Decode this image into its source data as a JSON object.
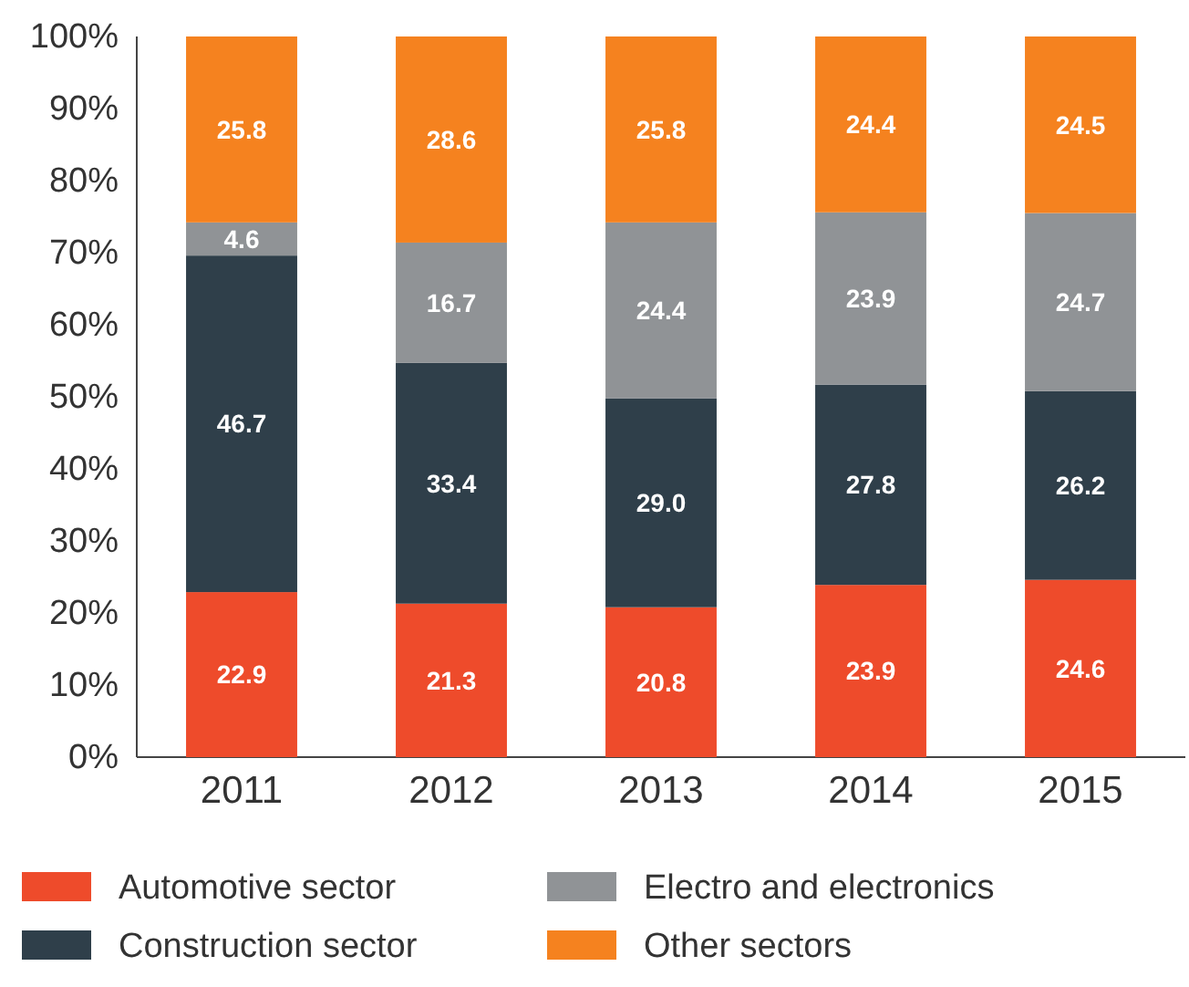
{
  "chart_data": {
    "type": "bar",
    "stacked": true,
    "categories": [
      "2011",
      "2012",
      "2013",
      "2014",
      "2015"
    ],
    "series": [
      {
        "name": "Automotive sector",
        "color": "#ee4b2b",
        "values": [
          22.9,
          21.3,
          20.8,
          23.9,
          24.6
        ],
        "value_labels": [
          "22.9",
          "21.3",
          "20.8",
          "23.9",
          "24.6"
        ]
      },
      {
        "name": "Construction sector",
        "color": "#2f3f4a",
        "values": [
          46.7,
          33.4,
          29.0,
          27.8,
          26.2
        ],
        "value_labels": [
          "46.7",
          "33.4",
          "29.0",
          "27.8",
          "26.2"
        ]
      },
      {
        "name": "Electro and electronics",
        "color": "#909396",
        "values": [
          4.6,
          16.7,
          24.4,
          23.9,
          24.7
        ],
        "value_labels": [
          "4.6",
          "16.7",
          "24.4",
          "23.9",
          "24.7"
        ]
      },
      {
        "name": "Other sectors",
        "color": "#f5821f",
        "values": [
          25.8,
          28.6,
          25.8,
          24.4,
          24.5
        ],
        "value_labels": [
          "25.8",
          "28.6",
          "25.8",
          "24.4",
          "24.5"
        ]
      }
    ],
    "ylim": [
      0,
      100
    ],
    "yticks": [
      {
        "value": 0,
        "label": "0%"
      },
      {
        "value": 10,
        "label": "10%"
      },
      {
        "value": 20,
        "label": "20%"
      },
      {
        "value": 30,
        "label": "30%"
      },
      {
        "value": 40,
        "label": "40%"
      },
      {
        "value": 50,
        "label": "50%"
      },
      {
        "value": 60,
        "label": "60%"
      },
      {
        "value": 70,
        "label": "70%"
      },
      {
        "value": 80,
        "label": "80%"
      },
      {
        "value": 90,
        "label": "90%"
      },
      {
        "value": 100,
        "label": "100%"
      }
    ],
    "legend": "bottom",
    "grid": false
  }
}
